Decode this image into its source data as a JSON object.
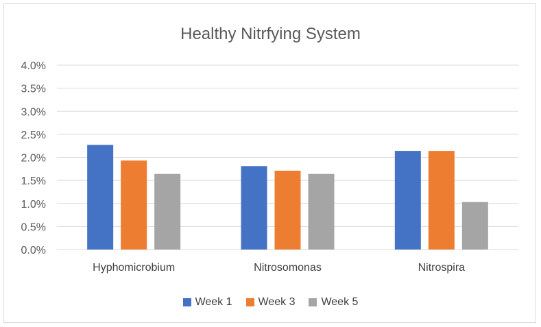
{
  "chart_data": {
    "type": "bar",
    "title": "Healthy Nitrfying System",
    "xlabel": "",
    "ylabel": "",
    "categories": [
      "Hyphomicrobium",
      "Nitrosomonas",
      "Nitrospira"
    ],
    "series": [
      {
        "name": "Week 1",
        "color": "#4472C4",
        "values": [
          2.27,
          1.81,
          2.14
        ]
      },
      {
        "name": "Week 3",
        "color": "#ED7D31",
        "values": [
          1.93,
          1.71,
          2.14
        ]
      },
      {
        "name": "Week 5",
        "color": "#A5A5A5",
        "values": [
          1.64,
          1.64,
          1.03
        ]
      }
    ],
    "ylim": [
      0,
      4.0
    ],
    "yticks": [
      "0.0%",
      "0.5%",
      "1.0%",
      "1.5%",
      "2.0%",
      "2.5%",
      "3.0%",
      "3.5%",
      "4.0%"
    ],
    "grid": true,
    "legend_position": "bottom"
  }
}
